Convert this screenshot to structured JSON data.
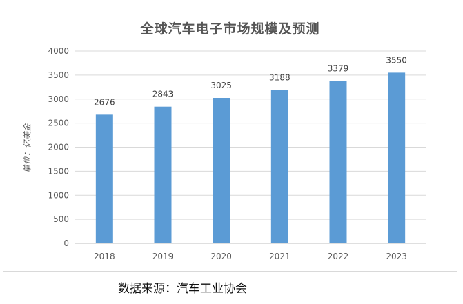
{
  "chart_data": {
    "type": "bar",
    "title": "全球汽车电子市场规模及预测",
    "ylabel": "单位：亿美金",
    "xlabel": "",
    "categories": [
      "2018",
      "2019",
      "2020",
      "2021",
      "2022",
      "2023"
    ],
    "values": [
      2676,
      2843,
      3025,
      3188,
      3379,
      3550
    ],
    "data_labels": [
      "2676",
      "2843",
      "3025",
      "3188",
      "3379",
      "3550"
    ],
    "ylim": [
      0,
      4000
    ],
    "yticks": [
      "0",
      "500",
      "1000",
      "1500",
      "2000",
      "2500",
      "3000",
      "3500",
      "4000"
    ],
    "grid": true,
    "legend": "none",
    "bar_color": "#5b9bd5"
  },
  "source_note": "数据来源：汽车工业协会"
}
